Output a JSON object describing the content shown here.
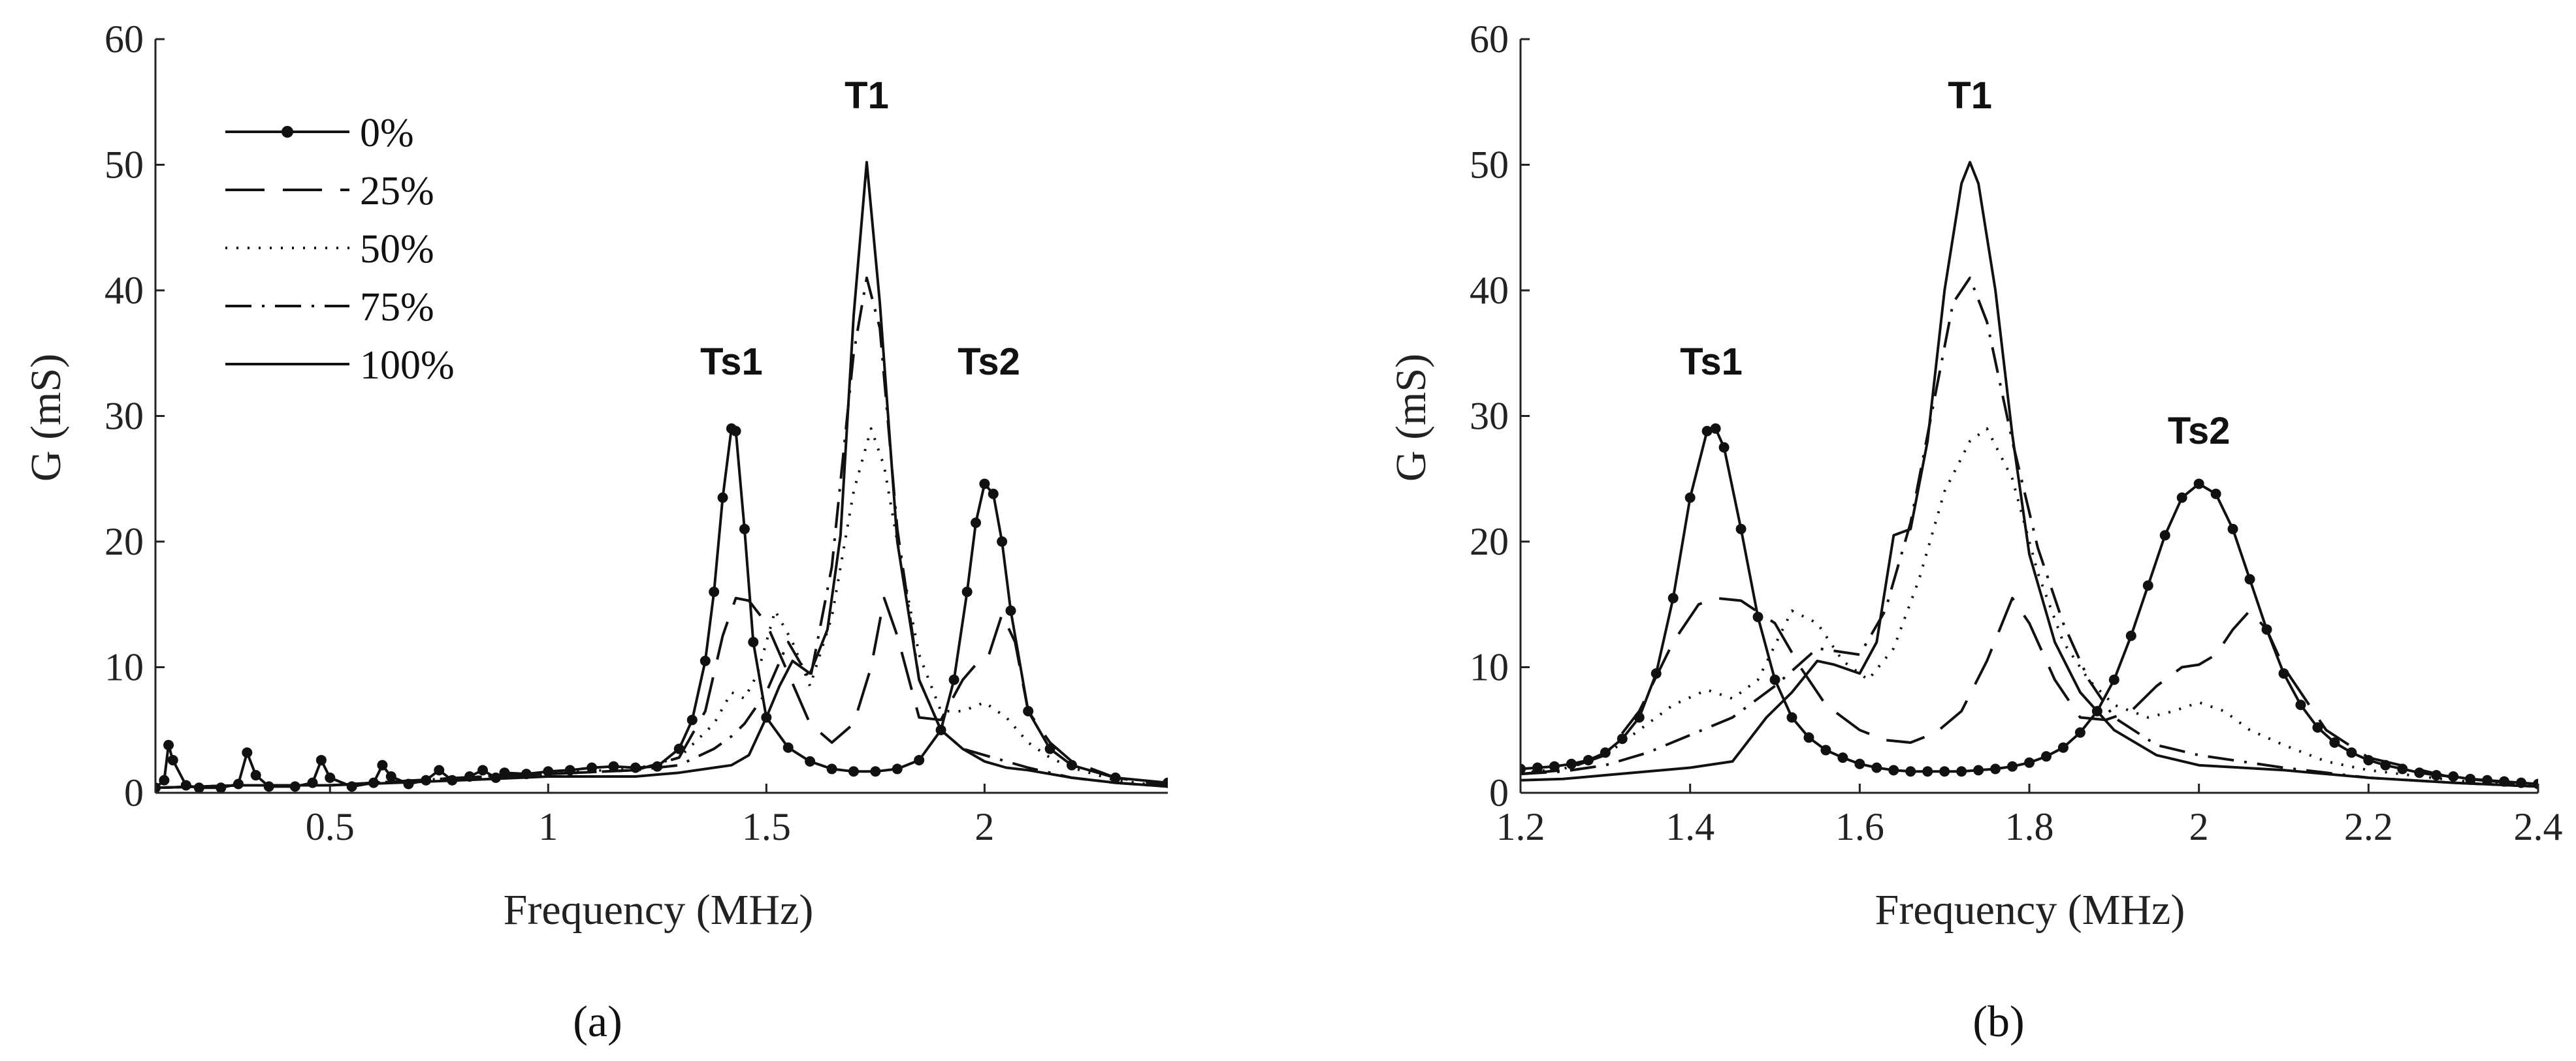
{
  "chart_data": [
    {
      "id": "a",
      "type": "line",
      "subfigure_label": "(a)",
      "xlabel": "Frequency (MHz)",
      "ylabel": "G (mS)",
      "xlim": [
        0.1,
        2.42
      ],
      "ylim": [
        0,
        60
      ],
      "xticks": [
        0.5,
        1,
        1.5,
        2
      ],
      "xtick_labels": [
        "0.5",
        "1",
        "1.5",
        "2"
      ],
      "yticks": [
        0,
        10,
        20,
        30,
        40,
        50,
        60
      ],
      "ytick_labels": [
        "0",
        "10",
        "20",
        "30",
        "40",
        "50",
        "60"
      ],
      "legend_position": "top-left",
      "annotations": [
        {
          "text": "T1",
          "x": 1.73,
          "y": 54.5
        },
        {
          "text": "Ts1",
          "x": 1.42,
          "y": 33.3
        },
        {
          "text": "Ts2",
          "x": 2.01,
          "y": 33.3
        }
      ],
      "series": [
        {
          "name": "0%",
          "style": "solid-dot",
          "x": [
            0.1,
            0.12,
            0.13,
            0.14,
            0.17,
            0.2,
            0.25,
            0.29,
            0.31,
            0.33,
            0.36,
            0.42,
            0.46,
            0.48,
            0.5,
            0.55,
            0.6,
            0.62,
            0.64,
            0.68,
            0.72,
            0.75,
            0.78,
            0.82,
            0.85,
            0.88,
            0.9,
            0.95,
            1.0,
            1.05,
            1.1,
            1.15,
            1.2,
            1.25,
            1.3,
            1.33,
            1.36,
            1.38,
            1.4,
            1.42,
            1.43,
            1.45,
            1.47,
            1.5,
            1.55,
            1.6,
            1.65,
            1.7,
            1.75,
            1.8,
            1.85,
            1.9,
            1.93,
            1.96,
            1.98,
            2.0,
            2.02,
            2.04,
            2.06,
            2.1,
            2.15,
            2.2,
            2.3,
            2.42
          ],
          "y": [
            0.4,
            1.0,
            3.8,
            2.6,
            0.6,
            0.4,
            0.4,
            0.7,
            3.2,
            1.4,
            0.5,
            0.5,
            0.8,
            2.6,
            1.2,
            0.5,
            0.8,
            2.2,
            1.3,
            0.7,
            1.0,
            1.8,
            1.0,
            1.3,
            1.8,
            1.2,
            1.6,
            1.5,
            1.7,
            1.8,
            2.0,
            2.1,
            2.0,
            2.1,
            3.5,
            5.8,
            10.5,
            16.0,
            23.5,
            29.0,
            28.8,
            21.0,
            12.0,
            6.0,
            3.6,
            2.5,
            1.9,
            1.7,
            1.7,
            1.9,
            2.6,
            5.0,
            9.0,
            16.0,
            21.5,
            24.6,
            23.8,
            20.0,
            14.5,
            6.5,
            3.5,
            2.2,
            1.2,
            0.8
          ]
        },
        {
          "name": "25%",
          "style": "dashed",
          "x": [
            0.1,
            0.3,
            0.5,
            0.8,
            1.0,
            1.2,
            1.3,
            1.36,
            1.4,
            1.43,
            1.46,
            1.5,
            1.55,
            1.6,
            1.65,
            1.7,
            1.74,
            1.77,
            1.8,
            1.85,
            1.9,
            1.95,
            1.98,
            2.01,
            2.04,
            2.07,
            2.1,
            2.15,
            2.2,
            2.3,
            2.42
          ],
          "y": [
            0.4,
            0.6,
            0.6,
            1.2,
            1.5,
            1.8,
            2.8,
            6.5,
            12.5,
            15.5,
            15.3,
            13.5,
            9.5,
            5.5,
            4.0,
            5.5,
            10.0,
            15.5,
            12.5,
            6.0,
            5.8,
            9.0,
            10.2,
            11.0,
            14.2,
            12.0,
            6.5,
            4.0,
            2.5,
            1.2,
            0.6
          ]
        },
        {
          "name": "50%",
          "style": "dotted",
          "x": [
            0.1,
            0.3,
            0.5,
            0.8,
            1.0,
            1.2,
            1.3,
            1.38,
            1.42,
            1.45,
            1.48,
            1.52,
            1.56,
            1.6,
            1.65,
            1.7,
            1.74,
            1.77,
            1.8,
            1.85,
            1.9,
            1.95,
            2.0,
            2.05,
            2.1,
            2.15,
            2.2,
            2.3,
            2.42
          ],
          "y": [
            0.4,
            0.6,
            0.6,
            1.2,
            1.6,
            1.9,
            2.8,
            5.5,
            8.0,
            7.5,
            9.5,
            14.5,
            12.0,
            8.5,
            14.0,
            24.0,
            29.0,
            26.0,
            20.0,
            11.0,
            6.5,
            6.5,
            7.2,
            6.0,
            4.0,
            2.8,
            2.0,
            1.0,
            0.5
          ]
        },
        {
          "name": "75%",
          "style": "dash-dot",
          "x": [
            0.1,
            0.3,
            0.5,
            0.8,
            1.0,
            1.2,
            1.3,
            1.38,
            1.42,
            1.45,
            1.5,
            1.55,
            1.6,
            1.65,
            1.7,
            1.73,
            1.76,
            1.8,
            1.85,
            1.9,
            1.95,
            2.0,
            2.05,
            2.1,
            2.2,
            2.3,
            2.42
          ],
          "y": [
            0.4,
            0.6,
            0.6,
            1.2,
            1.5,
            1.8,
            2.2,
            3.5,
            4.5,
            5.5,
            8.0,
            12.0,
            9.0,
            18.0,
            35.0,
            41.0,
            37.0,
            21.0,
            9.0,
            5.0,
            3.5,
            3.0,
            2.5,
            2.0,
            1.2,
            0.8,
            0.5
          ]
        },
        {
          "name": "100%",
          "style": "solid",
          "x": [
            0.1,
            0.3,
            0.5,
            0.8,
            1.0,
            1.2,
            1.3,
            1.38,
            1.42,
            1.46,
            1.5,
            1.53,
            1.56,
            1.6,
            1.64,
            1.67,
            1.7,
            1.73,
            1.76,
            1.8,
            1.85,
            1.9,
            1.95,
            2.0,
            2.05,
            2.1,
            2.2,
            2.3,
            2.42
          ],
          "y": [
            0.4,
            0.6,
            0.6,
            1.0,
            1.3,
            1.3,
            1.6,
            2.0,
            2.2,
            3.0,
            6.0,
            8.5,
            10.5,
            9.5,
            13.0,
            20.5,
            38.0,
            50.2,
            39.0,
            20.0,
            9.0,
            5.0,
            3.5,
            2.5,
            2.0,
            1.8,
            1.2,
            0.8,
            0.5
          ]
        }
      ]
    },
    {
      "id": "b",
      "type": "line",
      "subfigure_label": "(b)",
      "xlabel": "Frequency (MHz)",
      "ylabel": "G (mS)",
      "xlim": [
        1.2,
        2.4
      ],
      "ylim": [
        0,
        60
      ],
      "xticks": [
        1.2,
        1.4,
        1.6,
        1.8,
        2,
        2.2,
        2.4
      ],
      "xtick_labels": [
        "1.2",
        "1.4",
        "1.6",
        "1.8",
        "2",
        "2.2",
        "2.4"
      ],
      "yticks": [
        0,
        10,
        20,
        30,
        40,
        50,
        60
      ],
      "ytick_labels": [
        "0",
        "10",
        "20",
        "30",
        "40",
        "50",
        "60"
      ],
      "annotations": [
        {
          "text": "T1",
          "x": 1.73,
          "y": 54.5
        },
        {
          "text": "Ts1",
          "x": 1.425,
          "y": 33.3
        },
        {
          "text": "Ts2",
          "x": 2.0,
          "y": 27.8
        }
      ],
      "series": [
        {
          "name": "0%",
          "style": "solid-dot",
          "x": [
            1.2,
            1.22,
            1.24,
            1.26,
            1.28,
            1.3,
            1.32,
            1.34,
            1.36,
            1.38,
            1.4,
            1.42,
            1.43,
            1.44,
            1.46,
            1.48,
            1.5,
            1.52,
            1.54,
            1.56,
            1.58,
            1.6,
            1.62,
            1.64,
            1.66,
            1.68,
            1.7,
            1.72,
            1.74,
            1.76,
            1.78,
            1.8,
            1.82,
            1.84,
            1.86,
            1.88,
            1.9,
            1.92,
            1.94,
            1.96,
            1.98,
            2.0,
            2.02,
            2.04,
            2.06,
            2.08,
            2.1,
            2.12,
            2.14,
            2.16,
            2.18,
            2.2,
            2.22,
            2.24,
            2.26,
            2.28,
            2.3,
            2.32,
            2.34,
            2.36,
            2.38,
            2.4
          ],
          "y": [
            1.9,
            2.0,
            2.1,
            2.3,
            2.6,
            3.2,
            4.3,
            6.0,
            9.5,
            15.5,
            23.5,
            28.8,
            29.0,
            27.5,
            21.0,
            14.0,
            9.0,
            6.0,
            4.4,
            3.4,
            2.8,
            2.3,
            2.0,
            1.8,
            1.7,
            1.7,
            1.7,
            1.7,
            1.8,
            1.9,
            2.1,
            2.4,
            2.9,
            3.6,
            4.8,
            6.5,
            9.0,
            12.5,
            16.5,
            20.5,
            23.5,
            24.6,
            23.8,
            21.0,
            17.0,
            13.0,
            9.5,
            7.0,
            5.2,
            4.0,
            3.2,
            2.6,
            2.2,
            1.9,
            1.6,
            1.4,
            1.3,
            1.1,
            1.0,
            0.9,
            0.8,
            0.7
          ]
        },
        {
          "name": "25%",
          "style": "dashed",
          "x": [
            1.2,
            1.25,
            1.3,
            1.34,
            1.38,
            1.41,
            1.43,
            1.46,
            1.5,
            1.53,
            1.56,
            1.6,
            1.63,
            1.66,
            1.69,
            1.72,
            1.75,
            1.78,
            1.8,
            1.83,
            1.86,
            1.89,
            1.92,
            1.95,
            1.98,
            2.0,
            2.02,
            2.04,
            2.06,
            2.08,
            2.1,
            2.15,
            2.2,
            2.3,
            2.4
          ],
          "y": [
            1.5,
            1.8,
            3.0,
            6.5,
            12.0,
            15.0,
            15.5,
            15.3,
            13.5,
            10.0,
            7.0,
            5.0,
            4.2,
            4.0,
            4.8,
            6.5,
            10.5,
            15.5,
            13.5,
            9.0,
            6.0,
            5.8,
            6.5,
            8.5,
            10.0,
            10.2,
            11.0,
            13.0,
            14.5,
            13.0,
            10.0,
            5.0,
            2.8,
            1.2,
            0.6
          ]
        },
        {
          "name": "50%",
          "style": "dotted",
          "x": [
            1.2,
            1.25,
            1.3,
            1.34,
            1.38,
            1.42,
            1.45,
            1.48,
            1.52,
            1.55,
            1.58,
            1.61,
            1.64,
            1.67,
            1.7,
            1.73,
            1.75,
            1.78,
            1.81,
            1.84,
            1.87,
            1.9,
            1.94,
            1.97,
            2.0,
            2.03,
            2.06,
            2.1,
            2.15,
            2.2,
            2.3,
            2.4
          ],
          "y": [
            1.6,
            1.9,
            3.0,
            5.0,
            7.0,
            8.2,
            7.5,
            9.0,
            14.5,
            13.5,
            10.5,
            9.0,
            11.5,
            17.0,
            24.0,
            28.0,
            29.0,
            25.0,
            17.5,
            12.0,
            9.0,
            7.0,
            6.0,
            6.5,
            7.2,
            6.5,
            5.0,
            3.8,
            2.5,
            1.8,
            1.0,
            0.5
          ]
        },
        {
          "name": "75%",
          "style": "dash-dot",
          "x": [
            1.2,
            1.25,
            1.3,
            1.35,
            1.4,
            1.45,
            1.5,
            1.55,
            1.6,
            1.63,
            1.66,
            1.69,
            1.71,
            1.73,
            1.75,
            1.78,
            1.81,
            1.84,
            1.87,
            1.9,
            1.95,
            2.0,
            2.05,
            2.1,
            2.2,
            2.3,
            2.4
          ],
          "y": [
            1.5,
            1.7,
            2.2,
            3.2,
            4.6,
            6.0,
            8.5,
            11.5,
            11.0,
            14.5,
            21.5,
            32.0,
            39.0,
            41.0,
            37.5,
            28.0,
            19.5,
            13.5,
            9.0,
            6.0,
            3.8,
            3.0,
            2.5,
            2.0,
            1.2,
            0.8,
            0.5
          ]
        },
        {
          "name": "100%",
          "style": "solid",
          "x": [
            1.2,
            1.25,
            1.3,
            1.35,
            1.4,
            1.45,
            1.49,
            1.52,
            1.55,
            1.57,
            1.6,
            1.62,
            1.64,
            1.66,
            1.68,
            1.7,
            1.72,
            1.73,
            1.74,
            1.76,
            1.78,
            1.8,
            1.83,
            1.86,
            1.9,
            1.95,
            2.0,
            2.05,
            2.1,
            2.2,
            2.3,
            2.4
          ],
          "y": [
            1.0,
            1.1,
            1.4,
            1.7,
            2.0,
            2.5,
            6.0,
            8.0,
            10.5,
            10.2,
            9.5,
            12.0,
            20.5,
            21.0,
            28.0,
            40.0,
            48.5,
            50.2,
            48.5,
            40.0,
            28.5,
            19.0,
            12.0,
            8.0,
            5.0,
            3.0,
            2.2,
            2.0,
            1.8,
            1.2,
            0.8,
            0.5
          ]
        }
      ]
    }
  ]
}
